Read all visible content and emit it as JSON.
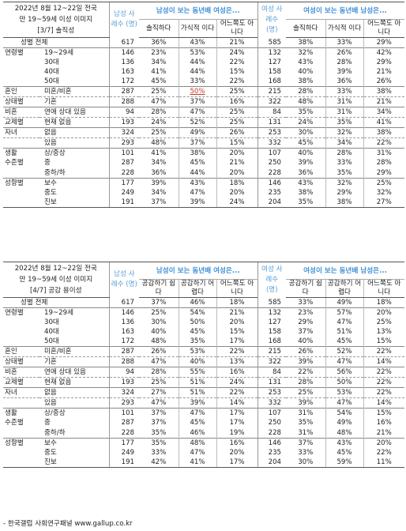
{
  "tables": [
    {
      "title_line1": "2022년 8월 12~22일 전국",
      "title_line2": "만 19~59세 이성 이미지",
      "title_line3": "[3/7] 솔직성",
      "male_n_label": "남성 사례수 (명)",
      "female_n_label": "여성 사례수 (명)",
      "male_group_label": "남성이 보는 동년배 여성은...",
      "female_group_label": "여성이 보는 동년배 남성은...",
      "col1": "솔직하다",
      "col2": "가식적 이다",
      "col3": "어느쪽도 아니다",
      "rows": [
        {
          "cat": "",
          "sub": "성별 전체",
          "mn": "617",
          "m1": "36%",
          "m2": "43%",
          "m3": "21%",
          "fn": "585",
          "f1": "38%",
          "f2": "33%",
          "f3": "29%",
          "style": "total"
        },
        {
          "cat": "연령별",
          "sub": "19~29세",
          "mn": "146",
          "m1": "23%",
          "m2": "53%",
          "m3": "24%",
          "fn": "132",
          "f1": "32%",
          "f2": "26%",
          "f3": "42%",
          "style": "top"
        },
        {
          "cat": "",
          "sub": "30대",
          "mn": "136",
          "m1": "34%",
          "m2": "44%",
          "m3": "22%",
          "fn": "127",
          "f1": "43%",
          "f2": "28%",
          "f3": "29%"
        },
        {
          "cat": "",
          "sub": "40대",
          "mn": "163",
          "m1": "41%",
          "m2": "44%",
          "m3": "15%",
          "fn": "158",
          "f1": "40%",
          "f2": "39%",
          "f3": "21%"
        },
        {
          "cat": "",
          "sub": "50대",
          "mn": "172",
          "m1": "45%",
          "m2": "33%",
          "m3": "22%",
          "fn": "168",
          "f1": "38%",
          "f2": "36%",
          "f3": "26%"
        },
        {
          "cat": "혼인",
          "sub": "미혼/비혼",
          "mn": "287",
          "m1": "25%",
          "m2": "50%",
          "m3": "25%",
          "fn": "215",
          "f1": "28%",
          "f2": "33%",
          "f3": "38%",
          "style": "top",
          "hl": "m2"
        },
        {
          "cat": "상태별",
          "sub": "기혼",
          "mn": "288",
          "m1": "47%",
          "m2": "37%",
          "m3": "16%",
          "fn": "322",
          "f1": "48%",
          "f2": "31%",
          "f3": "21%",
          "style": "dash"
        },
        {
          "cat": "비혼",
          "sub": "연애 상대 있음",
          "mn": "94",
          "m1": "28%",
          "m2": "47%",
          "m3": "25%",
          "fn": "84",
          "f1": "35%",
          "f2": "31%",
          "f3": "34%",
          "style": "top"
        },
        {
          "cat": "교제별",
          "sub": "현재 없음",
          "mn": "193",
          "m1": "24%",
          "m2": "52%",
          "m3": "25%",
          "fn": "131",
          "f1": "24%",
          "f2": "35%",
          "f3": "41%",
          "style": "dash"
        },
        {
          "cat": "자녀",
          "sub": "없음",
          "mn": "324",
          "m1": "25%",
          "m2": "49%",
          "m3": "26%",
          "fn": "253",
          "f1": "30%",
          "f2": "32%",
          "f3": "38%",
          "style": "top"
        },
        {
          "cat": "",
          "sub": "있음",
          "mn": "293",
          "m1": "48%",
          "m2": "37%",
          "m3": "15%",
          "fn": "332",
          "f1": "45%",
          "f2": "34%",
          "f3": "22%",
          "style": "dash"
        },
        {
          "cat": "생활",
          "sub": "상/중상",
          "mn": "101",
          "m1": "41%",
          "m2": "38%",
          "m3": "20%",
          "fn": "107",
          "f1": "40%",
          "f2": "28%",
          "f3": "31%",
          "style": "top"
        },
        {
          "cat": "수준별",
          "sub": "중",
          "mn": "287",
          "m1": "34%",
          "m2": "45%",
          "m3": "21%",
          "fn": "250",
          "f1": "39%",
          "f2": "33%",
          "f3": "28%"
        },
        {
          "cat": "",
          "sub": "중하/하",
          "mn": "228",
          "m1": "36%",
          "m2": "44%",
          "m3": "20%",
          "fn": "228",
          "f1": "36%",
          "f2": "35%",
          "f3": "29%"
        },
        {
          "cat": "성향별",
          "sub": "보수",
          "mn": "177",
          "m1": "39%",
          "m2": "43%",
          "m3": "18%",
          "fn": "146",
          "f1": "43%",
          "f2": "32%",
          "f3": "25%",
          "style": "top"
        },
        {
          "cat": "",
          "sub": "중도",
          "mn": "249",
          "m1": "34%",
          "m2": "47%",
          "m3": "20%",
          "fn": "235",
          "f1": "38%",
          "f2": "29%",
          "f3": "32%"
        },
        {
          "cat": "",
          "sub": "진보",
          "mn": "191",
          "m1": "37%",
          "m2": "39%",
          "m3": "24%",
          "fn": "204",
          "f1": "35%",
          "f2": "38%",
          "f3": "27%",
          "style": "bottom"
        }
      ]
    },
    {
      "title_line1": "2022년 8월 12~22일 전국",
      "title_line2": "만 19~59세 이성 이미지",
      "title_line3": "[4/7] 공감 용이성",
      "male_n_label": "남성 사례수 (명)",
      "female_n_label": "여성 사례수 (명)",
      "male_group_label": "남성이 보는 동년배 여성은...",
      "female_group_label": "여성이 보는 동년배 남성은...",
      "col1": "공감하기 쉽다",
      "col2": "공감하기 어렵다",
      "col3": "어느쪽도 아니다",
      "rows": [
        {
          "cat": "",
          "sub": "성별 전체",
          "mn": "617",
          "m1": "37%",
          "m2": "46%",
          "m3": "18%",
          "fn": "585",
          "f1": "33%",
          "f2": "49%",
          "f3": "18%",
          "style": "total"
        },
        {
          "cat": "연령별",
          "sub": "19~29세",
          "mn": "146",
          "m1": "25%",
          "m2": "54%",
          "m3": "21%",
          "fn": "132",
          "f1": "23%",
          "f2": "57%",
          "f3": "20%",
          "style": "top"
        },
        {
          "cat": "",
          "sub": "30대",
          "mn": "136",
          "m1": "30%",
          "m2": "50%",
          "m3": "20%",
          "fn": "127",
          "f1": "29%",
          "f2": "47%",
          "f3": "25%"
        },
        {
          "cat": "",
          "sub": "40대",
          "mn": "163",
          "m1": "40%",
          "m2": "45%",
          "m3": "15%",
          "fn": "158",
          "f1": "37%",
          "f2": "51%",
          "f3": "13%"
        },
        {
          "cat": "",
          "sub": "50대",
          "mn": "172",
          "m1": "48%",
          "m2": "35%",
          "m3": "17%",
          "fn": "168",
          "f1": "40%",
          "f2": "45%",
          "f3": "15%"
        },
        {
          "cat": "혼인",
          "sub": "미혼/비혼",
          "mn": "287",
          "m1": "26%",
          "m2": "53%",
          "m3": "22%",
          "fn": "215",
          "f1": "26%",
          "f2": "52%",
          "f3": "22%",
          "style": "top"
        },
        {
          "cat": "상태별",
          "sub": "기혼",
          "mn": "288",
          "m1": "47%",
          "m2": "40%",
          "m3": "13%",
          "fn": "322",
          "f1": "39%",
          "f2": "47%",
          "f3": "14%",
          "style": "dash"
        },
        {
          "cat": "비혼",
          "sub": "연애 상대 있음",
          "mn": "94",
          "m1": "28%",
          "m2": "55%",
          "m3": "16%",
          "fn": "84",
          "f1": "22%",
          "f2": "56%",
          "f3": "22%",
          "style": "top"
        },
        {
          "cat": "교제별",
          "sub": "현재 없음",
          "mn": "193",
          "m1": "25%",
          "m2": "51%",
          "m3": "24%",
          "fn": "131",
          "f1": "28%",
          "f2": "50%",
          "f3": "22%",
          "style": "dash"
        },
        {
          "cat": "자녀",
          "sub": "없음",
          "mn": "324",
          "m1": "27%",
          "m2": "51%",
          "m3": "22%",
          "fn": "253",
          "f1": "25%",
          "f2": "53%",
          "f3": "22%",
          "style": "top"
        },
        {
          "cat": "",
          "sub": "있음",
          "mn": "293",
          "m1": "47%",
          "m2": "39%",
          "m3": "14%",
          "fn": "332",
          "f1": "39%",
          "f2": "47%",
          "f3": "14%",
          "style": "dash"
        },
        {
          "cat": "생활",
          "sub": "상/중상",
          "mn": "101",
          "m1": "37%",
          "m2": "47%",
          "m3": "17%",
          "fn": "107",
          "f1": "31%",
          "f2": "54%",
          "f3": "15%",
          "style": "top"
        },
        {
          "cat": "수준별",
          "sub": "중",
          "mn": "287",
          "m1": "37%",
          "m2": "45%",
          "m3": "17%",
          "fn": "250",
          "f1": "35%",
          "f2": "49%",
          "f3": "16%"
        },
        {
          "cat": "",
          "sub": "중하/하",
          "mn": "228",
          "m1": "35%",
          "m2": "46%",
          "m3": "19%",
          "fn": "228",
          "f1": "31%",
          "f2": "48%",
          "f3": "21%"
        },
        {
          "cat": "성향별",
          "sub": "보수",
          "mn": "177",
          "m1": "35%",
          "m2": "48%",
          "m3": "16%",
          "fn": "146",
          "f1": "37%",
          "f2": "43%",
          "f3": "20%",
          "style": "top"
        },
        {
          "cat": "",
          "sub": "중도",
          "mn": "249",
          "m1": "33%",
          "m2": "47%",
          "m3": "20%",
          "fn": "235",
          "f1": "33%",
          "f2": "45%",
          "f3": "22%"
        },
        {
          "cat": "",
          "sub": "진보",
          "mn": "191",
          "m1": "42%",
          "m2": "41%",
          "m3": "17%",
          "fn": "204",
          "f1": "30%",
          "f2": "59%",
          "f3": "11%",
          "style": "bottom"
        }
      ]
    }
  ],
  "footer": "- 한국갤럽 사회연구패널 www.gallup.co.kr"
}
